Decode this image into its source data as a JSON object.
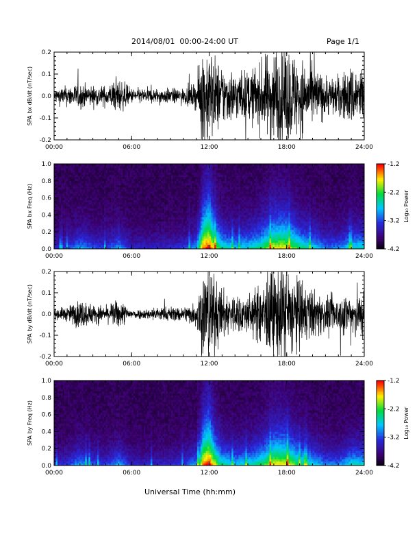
{
  "header": {
    "title": "2014/08/01  00:00-24:00 UT",
    "page": "Page 1/1"
  },
  "footer": {
    "xlabel": "Universal Time (hh:mm)"
  },
  "chart_data": [
    {
      "type": "line",
      "ylabel": "SPA bx dB/dt (nT/sec)",
      "ylim": [
        -0.2,
        0.2
      ],
      "yticks": [
        -0.2,
        -0.1,
        0.0,
        0.1,
        0.2
      ],
      "ytick_labels": [
        "-0.2",
        "-0.1",
        "0.0",
        "0.1",
        "0.2"
      ],
      "xticks": [
        "00:00",
        "06:00",
        "12:00",
        "18:00",
        "24:00"
      ],
      "xlim_hours": [
        0,
        24
      ],
      "series_color": "#000000",
      "envelope": {
        "hours": [
          0,
          1,
          2,
          3,
          4,
          5,
          6,
          7,
          8,
          9,
          10,
          11,
          11.5,
          12,
          12.5,
          13,
          14,
          15,
          16,
          17,
          18,
          19,
          20,
          21,
          22,
          23,
          24
        ],
        "amplitude": [
          0.03,
          0.04,
          0.05,
          0.04,
          0.04,
          0.07,
          0.03,
          0.03,
          0.03,
          0.03,
          0.03,
          0.05,
          0.2,
          0.2,
          0.15,
          0.12,
          0.1,
          0.1,
          0.13,
          0.2,
          0.2,
          0.15,
          0.12,
          0.08,
          0.08,
          0.12,
          0.12
        ]
      }
    },
    {
      "type": "heatmap",
      "ylabel": "SPA bx Freq (Hz)",
      "ylim": [
        0.0,
        1.0
      ],
      "yticks": [
        0.0,
        0.2,
        0.4,
        0.6,
        0.8,
        1.0
      ],
      "ytick_labels": [
        "0.0",
        "0.2",
        "0.4",
        "0.6",
        "0.8",
        "1.0"
      ],
      "xticks": [
        "00:00",
        "06:00",
        "12:00",
        "18:00",
        "24:00"
      ],
      "xlim_hours": [
        0,
        24
      ],
      "colorbar": {
        "label": "Log₁₀ Power",
        "range": [
          -4.2,
          -1.2
        ],
        "ticks": [
          "-1.2",
          "-2.2",
          "-3.2",
          "-4.2"
        ]
      },
      "activity": {
        "hours": [
          0,
          1,
          2,
          3,
          4,
          5,
          6,
          7,
          8,
          9,
          10,
          11,
          11.5,
          12,
          12.5,
          13,
          14,
          15,
          16,
          17,
          18,
          19,
          20,
          21,
          22,
          23,
          24
        ],
        "level": [
          0.2,
          0.25,
          0.4,
          0.3,
          0.25,
          0.4,
          0.2,
          0.2,
          0.2,
          0.2,
          0.25,
          0.4,
          0.9,
          1.0,
          0.75,
          0.55,
          0.45,
          0.5,
          0.6,
          0.8,
          0.8,
          0.6,
          0.5,
          0.35,
          0.35,
          0.5,
          0.5
        ]
      }
    },
    {
      "type": "line",
      "ylabel": "SPA by dB/dt (nT/sec)",
      "ylim": [
        -0.2,
        0.2
      ],
      "yticks": [
        -0.2,
        -0.1,
        0.0,
        0.1,
        0.2
      ],
      "ytick_labels": [
        "-0.2",
        "-0.1",
        "0.0",
        "0.1",
        "0.2"
      ],
      "xticks": [
        "00:00",
        "06:00",
        "12:00",
        "18:00",
        "24:00"
      ],
      "xlim_hours": [
        0,
        24
      ],
      "series_color": "#000000",
      "envelope": {
        "hours": [
          0,
          1,
          2,
          3,
          4,
          5,
          6,
          7,
          8,
          9,
          10,
          11,
          11.5,
          12,
          12.5,
          13,
          14,
          15,
          16,
          17,
          18,
          19,
          20,
          21,
          22,
          23,
          24
        ],
        "amplitude": [
          0.02,
          0.03,
          0.06,
          0.04,
          0.03,
          0.06,
          0.02,
          0.02,
          0.03,
          0.03,
          0.03,
          0.05,
          0.2,
          0.2,
          0.15,
          0.1,
          0.08,
          0.08,
          0.12,
          0.2,
          0.2,
          0.14,
          0.1,
          0.07,
          0.07,
          0.1,
          0.1
        ]
      }
    },
    {
      "type": "heatmap",
      "ylabel": "SPA by Freq (Hz)",
      "ylim": [
        0.0,
        1.0
      ],
      "yticks": [
        0.0,
        0.2,
        0.4,
        0.6,
        0.8,
        1.0
      ],
      "ytick_labels": [
        "0.0",
        "0.2",
        "0.4",
        "0.6",
        "0.8",
        "1.0"
      ],
      "xticks": [
        "00:00",
        "06:00",
        "12:00",
        "18:00",
        "24:00"
      ],
      "xlim_hours": [
        0,
        24
      ],
      "colorbar": {
        "label": "Log₁₀ Power",
        "range": [
          -4.2,
          -1.2
        ],
        "ticks": [
          "-1.2",
          "-2.2",
          "-3.2",
          "-4.2"
        ]
      },
      "activity": {
        "hours": [
          0,
          1,
          2,
          3,
          4,
          5,
          6,
          7,
          8,
          9,
          10,
          11,
          11.5,
          12,
          12.5,
          13,
          14,
          15,
          16,
          17,
          18,
          19,
          20,
          21,
          22,
          23,
          24
        ],
        "level": [
          0.2,
          0.25,
          0.4,
          0.3,
          0.25,
          0.4,
          0.2,
          0.2,
          0.2,
          0.2,
          0.25,
          0.4,
          0.9,
          1.0,
          0.75,
          0.55,
          0.45,
          0.5,
          0.6,
          0.8,
          0.8,
          0.6,
          0.5,
          0.35,
          0.35,
          0.5,
          0.5
        ]
      }
    }
  ]
}
